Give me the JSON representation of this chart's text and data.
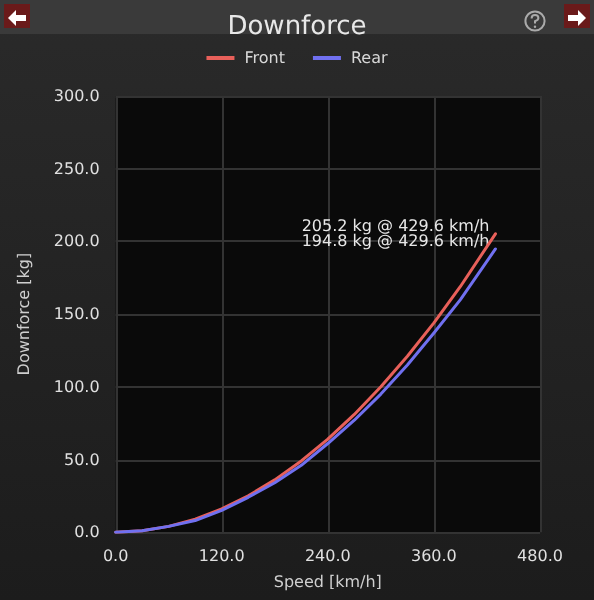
{
  "chart_data": {
    "type": "line",
    "title": "Downforce",
    "xlabel": "Speed [km/h]",
    "ylabel": "Downforce [kg]",
    "x": [
      0,
      30,
      60,
      90,
      120,
      150,
      180,
      210,
      240,
      270,
      300,
      330,
      360,
      390,
      429.6
    ],
    "series": [
      {
        "name": "Front",
        "color": "#e8605a",
        "values": [
          0,
          1,
          4,
          9,
          16,
          25,
          36,
          49,
          64,
          81,
          100,
          121,
          144,
          169,
          205.2
        ]
      },
      {
        "name": "Rear",
        "color": "#7070f0",
        "values": [
          0,
          1,
          4,
          8,
          15,
          24,
          34,
          46,
          61,
          77,
          95,
          115,
          137,
          160,
          194.8
        ]
      }
    ],
    "annotations": [
      {
        "text": "194.8 kg @ 429.6 km/h",
        "x": 429.6,
        "y": 194.8
      },
      {
        "text": "205.2 kg @ 429.6 km/h",
        "x": 429.6,
        "y": 205.2
      }
    ],
    "xlim": [
      0,
      480
    ],
    "xticks": [
      {
        "value": 0,
        "label": "0.0"
      },
      {
        "value": 120,
        "label": "120.0"
      },
      {
        "value": 240,
        "label": "240.0"
      },
      {
        "value": 360,
        "label": "360.0"
      },
      {
        "value": 480,
        "label": "480.0"
      }
    ],
    "ylim": [
      0,
      300
    ],
    "yticks": [
      {
        "value": 0,
        "label": "0.0"
      },
      {
        "value": 50,
        "label": "50.0"
      },
      {
        "value": 100,
        "label": "100.0"
      },
      {
        "value": 150,
        "label": "150.0"
      },
      {
        "value": 200,
        "label": "200.0"
      },
      {
        "value": 250,
        "label": "250.0"
      },
      {
        "value": 300,
        "label": "300.0"
      }
    ],
    "grid": true,
    "legend": "top",
    "marker": "none",
    "line_style": "solid"
  }
}
